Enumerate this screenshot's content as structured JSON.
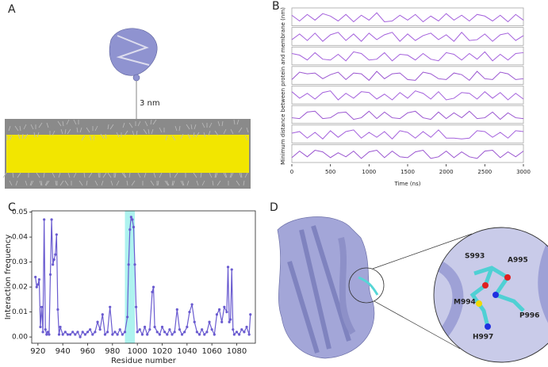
{
  "panel_a": {
    "label": "A",
    "distance_label": "3 nm"
  },
  "panel_d": {
    "label": "D",
    "residue_labels": [
      "S993",
      "A995",
      "M994",
      "P996",
      "H997"
    ]
  },
  "chart_data": [
    {
      "type": "line",
      "panel_label": "B",
      "xlabel": "Time (ns)",
      "ylabel": "Minimum distance between protein and membrane (nm)",
      "x": [
        0,
        100,
        200,
        300,
        400,
        500,
        600,
        700,
        800,
        900,
        1000,
        1100,
        1200,
        1300,
        1400,
        1500,
        1600,
        1700,
        1800,
        1900,
        2000,
        2100,
        2200,
        2300,
        2400,
        2500,
        2600,
        2700,
        2800,
        2900,
        3000
      ],
      "xlim": [
        0,
        3000
      ],
      "xticks": [
        0,
        500,
        1000,
        1500,
        2000,
        2500,
        3000
      ],
      "ylim": [
        0,
        2
      ],
      "series": [
        {
          "color": "#a461dc",
          "values": [
            1.2,
            0.5,
            1.3,
            0.6,
            1.4,
            1.1,
            0.5,
            1.3,
            0.4,
            1.2,
            0.6,
            1.5,
            0.4,
            0.5,
            1.2,
            0.6,
            1.3,
            0.4,
            1.1,
            0.5,
            1.4,
            0.6,
            1.2,
            0.5,
            1.3,
            1.1,
            0.5,
            1.2,
            0.4,
            1.3,
            0.6
          ]
        },
        {
          "color": "#a461dc",
          "values": [
            0.6,
            1.3,
            0.5,
            1.4,
            0.4,
            1.2,
            1.5,
            0.5,
            1.3,
            0.4,
            1.4,
            0.6,
            1.2,
            1.5,
            0.4,
            1.3,
            0.5,
            1.1,
            1.4,
            0.6,
            1.2,
            0.4,
            1.5,
            0.5,
            0.6,
            1.3,
            0.4,
            1.2,
            1.4,
            0.5,
            1.1
          ]
        },
        {
          "color": "#a461dc",
          "values": [
            1.3,
            1.1,
            0.5,
            1.4,
            0.6,
            0.5,
            1.2,
            0.4,
            1.5,
            1.3,
            0.5,
            0.6,
            1.4,
            0.4,
            1.2,
            1.1,
            0.5,
            1.3,
            0.6,
            0.4,
            1.4,
            1.2,
            0.5,
            1.3,
            0.6,
            1.5,
            0.4,
            1.2,
            0.5,
            1.3,
            1.4
          ]
        },
        {
          "color": "#9a55d0",
          "values": [
            0.5,
            1.4,
            1.2,
            1.3,
            0.6,
            1.1,
            1.4,
            0.5,
            1.3,
            1.2,
            0.4,
            1.5,
            0.6,
            1.2,
            1.3,
            0.5,
            0.4,
            1.4,
            1.2,
            0.6,
            0.5,
            1.3,
            1.1,
            0.4,
            1.5,
            0.6,
            0.5,
            1.4,
            1.2,
            0.5,
            0.6
          ]
        },
        {
          "color": "#a461dc",
          "values": [
            1.4,
            0.6,
            1.2,
            0.5,
            1.3,
            1.5,
            0.4,
            1.2,
            0.6,
            1.4,
            1.3,
            0.5,
            1.1,
            0.4,
            1.3,
            0.6,
            1.5,
            1.2,
            0.5,
            1.4,
            0.4,
            0.6,
            1.3,
            1.2,
            0.5,
            1.4,
            0.6,
            1.3,
            0.4,
            1.2,
            0.5
          ]
        },
        {
          "color": "#9a55d0",
          "values": [
            0.6,
            0.5,
            1.3,
            1.4,
            0.5,
            0.6,
            1.2,
            1.3,
            0.4,
            0.6,
            1.4,
            0.5,
            1.3,
            0.6,
            0.5,
            1.2,
            1.4,
            0.6,
            0.4,
            1.3,
            0.5,
            1.2,
            0.6,
            1.4,
            0.5,
            0.6,
            1.3,
            0.4,
            1.2,
            0.6,
            0.5
          ]
        },
        {
          "color": "#a461dc",
          "values": [
            1.1,
            1.3,
            0.5,
            1.2,
            0.4,
            1.4,
            0.6,
            1.3,
            1.5,
            0.5,
            1.2,
            0.6,
            1.3,
            0.4,
            1.4,
            1.2,
            0.5,
            1.3,
            0.6,
            1.5,
            0.5,
            0.5,
            0.4,
            0.5,
            1.4,
            1.3,
            0.6,
            1.2,
            0.5,
            1.4,
            1.3
          ]
        },
        {
          "color": "#9a55d0",
          "values": [
            0.5,
            1.3,
            0.6,
            1.4,
            1.2,
            0.5,
            1.1,
            0.6,
            1.3,
            0.4,
            1.2,
            1.4,
            0.5,
            1.3,
            0.6,
            0.5,
            1.2,
            1.4,
            0.4,
            0.6,
            1.3,
            0.5,
            1.2,
            0.6,
            0.4,
            1.3,
            1.4,
            0.5,
            1.2,
            0.6,
            1.3
          ]
        }
      ]
    },
    {
      "type": "line",
      "panel_label": "C",
      "xlabel": "Residue number",
      "ylabel": "Interaction frequency",
      "color": "#6a5bd0",
      "highlight_span": [
        990,
        998
      ],
      "highlight_color": "#5ee8df",
      "xlim": [
        915,
        1095
      ],
      "xticks": [
        920,
        940,
        960,
        980,
        1000,
        1020,
        1040,
        1060,
        1080
      ],
      "ylim": [
        -0.0025,
        0.0505
      ],
      "yticks": [
        {
          "value": 0,
          "label": "0.00"
        },
        0.01,
        0.02,
        0.03,
        0.04,
        0.05
      ],
      "x": [
        918,
        919,
        920,
        921,
        922,
        923,
        924,
        925,
        926,
        927,
        928,
        929,
        930,
        931,
        932,
        933,
        934,
        935,
        936,
        937,
        938,
        940,
        942,
        944,
        946,
        948,
        950,
        952,
        954,
        956,
        958,
        960,
        962,
        964,
        966,
        968,
        970,
        972,
        974,
        976,
        978,
        980,
        982,
        984,
        986,
        988,
        990,
        992,
        993,
        994,
        995,
        996,
        997,
        998,
        999,
        1000,
        1002,
        1004,
        1006,
        1008,
        1010,
        1012,
        1013,
        1014,
        1016,
        1018,
        1020,
        1022,
        1024,
        1026,
        1028,
        1030,
        1032,
        1034,
        1036,
        1038,
        1040,
        1042,
        1044,
        1046,
        1048,
        1050,
        1052,
        1054,
        1056,
        1058,
        1060,
        1062,
        1064,
        1066,
        1068,
        1070,
        1072,
        1073,
        1074,
        1075,
        1076,
        1077,
        1078,
        1080,
        1082,
        1084,
        1086,
        1088,
        1090,
        1091
      ],
      "values": [
        0.024,
        0.02,
        0.021,
        0.023,
        0.004,
        0.012,
        0.002,
        0.047,
        0.003,
        0.001,
        0.002,
        0.001,
        0.025,
        0.047,
        0.029,
        0.031,
        0.033,
        0.041,
        0.011,
        0.001,
        0.004,
        0.001,
        0.002,
        0.001,
        0.001,
        0.002,
        0.001,
        0.002,
        0.0,
        0.002,
        0.001,
        0.002,
        0.003,
        0.001,
        0.002,
        0.006,
        0.003,
        0.009,
        0.001,
        0.002,
        0.012,
        0.001,
        0.002,
        0.001,
        0.003,
        0.001,
        0.002,
        0.008,
        0.029,
        0.043,
        0.048,
        0.047,
        0.044,
        0.029,
        0.012,
        0.002,
        0.003,
        0.001,
        0.004,
        0.001,
        0.003,
        0.018,
        0.02,
        0.004,
        0.002,
        0.001,
        0.004,
        0.002,
        0.001,
        0.003,
        0.001,
        0.002,
        0.011,
        0.003,
        0.001,
        0.002,
        0.004,
        0.01,
        0.013,
        0.006,
        0.002,
        0.001,
        0.003,
        0.001,
        0.002,
        0.006,
        0.003,
        0.001,
        0.009,
        0.011,
        0.006,
        0.012,
        0.01,
        0.028,
        0.006,
        0.007,
        0.027,
        0.003,
        0.001,
        0.002,
        0.001,
        0.003,
        0.002,
        0.004,
        0.001,
        0.009
      ]
    }
  ]
}
